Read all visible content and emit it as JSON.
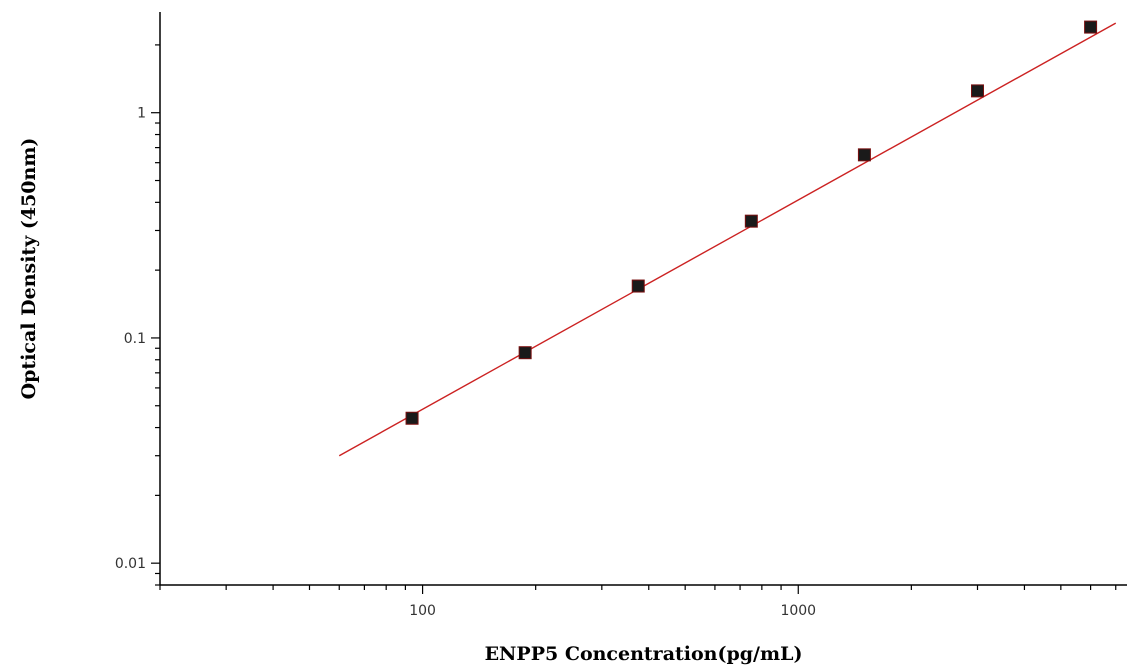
{
  "chart_data": {
    "type": "scatter",
    "title": "",
    "xlabel": "ENPP5 Concentration(pg/mL)",
    "ylabel": "Optical Density (450nm)",
    "x_scale": "log",
    "y_scale": "log",
    "xlim": [
      20,
      7500
    ],
    "ylim": [
      0.008,
      2.8
    ],
    "x_ticks": [
      {
        "value": 100,
        "label": "100"
      },
      {
        "value": 1000,
        "label": "1000"
      }
    ],
    "y_ticks": [
      {
        "value": 0.01,
        "label": "0.01"
      },
      {
        "value": 0.1,
        "label": "0.1"
      },
      {
        "value": 1,
        "label": "1"
      }
    ],
    "grid": false,
    "series": [
      {
        "x": [
          93.75,
          187.5,
          375,
          750,
          1500,
          3000,
          6000
        ],
        "y": [
          0.044,
          0.086,
          0.17,
          0.33,
          0.65,
          1.25,
          2.4
        ],
        "marker": "square",
        "color": "#1a1a1a"
      }
    ],
    "fit_line": {
      "color": "#cc2222",
      "x": [
        60,
        7000
      ],
      "y": [
        0.03,
        2.5
      ]
    }
  }
}
